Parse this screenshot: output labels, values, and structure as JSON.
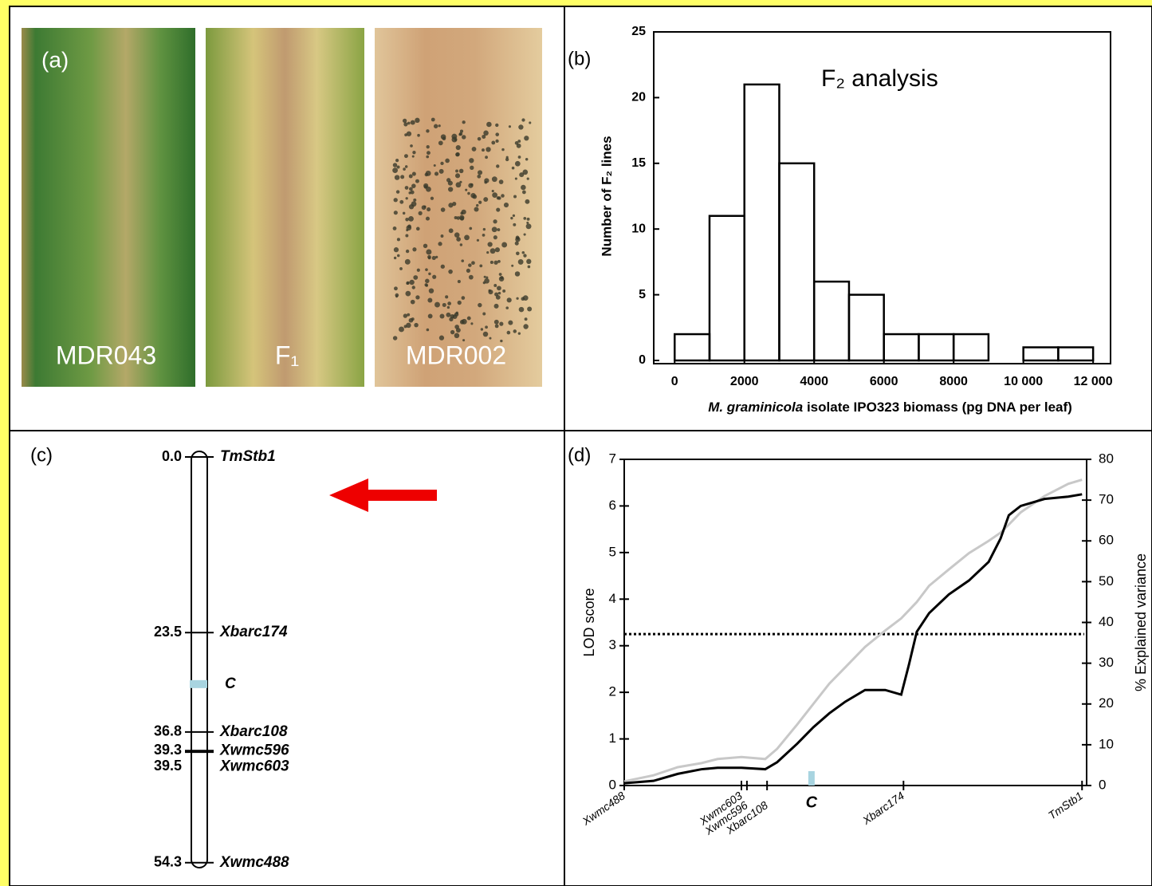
{
  "panels": {
    "a": {
      "label": "(a)",
      "leaves": [
        "MDR043",
        "F₁",
        "MDR002"
      ]
    },
    "c": {
      "label": "(c)",
      "markers": [
        {
          "position": "0.0",
          "name": "TmStb1"
        },
        {
          "position": "23.5",
          "name": "Xbarc174"
        },
        {
          "position": "36.8",
          "name": "Xbarc108"
        },
        {
          "position": "39.3",
          "name": "Xwmc596"
        },
        {
          "position": "39.5",
          "name": "Xwmc603"
        },
        {
          "position": "54.3",
          "name": "Xwmc488"
        }
      ],
      "qtl": {
        "name": "C",
        "position": 30.4
      }
    }
  },
  "chart_data": [
    {
      "type": "histogram",
      "panel_label": "(b)",
      "annotation": "F₂ analysis",
      "ylabel": "Number of F₂ lines",
      "xlabel_italic": "M. graminicola",
      "xlabel": "isolate IPO323 biomass (pg DNA per leaf)",
      "bins": [
        0,
        1000,
        2000,
        3000,
        4000,
        5000,
        6000,
        7000,
        8000,
        9000,
        10000,
        11000,
        12000
      ],
      "values": [
        2,
        11,
        21,
        15,
        6,
        5,
        2,
        2,
        2,
        0,
        1,
        1
      ],
      "color": "#000000",
      "xlim": [
        -600,
        12500
      ],
      "ylim": [
        0,
        25
      ],
      "xticks": [
        0,
        2000,
        4000,
        6000,
        8000,
        {
          "value": 10000,
          "label": "10 000"
        },
        {
          "value": 12000,
          "label": "12 000"
        }
      ],
      "yticks": [
        0,
        5,
        10,
        15,
        20,
        25
      ]
    },
    {
      "type": "line",
      "panel_label": "(d)",
      "ylabel": "LOD score",
      "y2label": "% Explained variance",
      "x": [
        0,
        6.4,
        11.7,
        16.9,
        20.4,
        25.6,
        30.8,
        33.4,
        37.8,
        41.3,
        44.8,
        48.3,
        52.6,
        57.0,
        60.5,
        62.2,
        63.9,
        66.6,
        70.9,
        75.3,
        79.6,
        82.2,
        84.0,
        86.6,
        91.8,
        97.0,
        100
      ],
      "series": [
        {
          "color": "#000000",
          "values": [
            0.05,
            0.1,
            0.25,
            0.35,
            0.38,
            0.38,
            0.35,
            0.5,
            0.9,
            1.25,
            1.55,
            1.8,
            2.05,
            2.05,
            1.95,
            2.6,
            3.3,
            3.7,
            4.1,
            4.4,
            4.8,
            5.3,
            5.8,
            6.0,
            6.15,
            6.2,
            6.25
          ]
        },
        {
          "color": "#c8c8c8",
          "axis": "y2",
          "values": [
            1,
            2.5,
            4.5,
            5.5,
            6.5,
            7,
            6.5,
            9,
            15,
            20,
            25,
            29,
            34,
            38,
            41,
            43,
            45,
            49,
            53,
            57,
            60,
            62,
            64,
            67,
            71,
            74,
            75
          ]
        }
      ],
      "threshold": 3.25,
      "xlim": [
        0,
        101
      ],
      "ylim": [
        0,
        7
      ],
      "y2lim": [
        0,
        80
      ],
      "yticks": [
        0,
        1,
        2,
        3,
        4,
        5,
        6,
        7
      ],
      "y2ticks": [
        0,
        10,
        20,
        30,
        40,
        50,
        60,
        70,
        80
      ],
      "xticks": [
        {
          "value": 0,
          "label": "Xwmc488"
        },
        {
          "value": 25.6,
          "label": "Xwmc603"
        },
        {
          "value": 26.8,
          "label": "Xwmc596"
        },
        {
          "value": 31.2,
          "label": "Xbarc108"
        },
        {
          "value": 61.0,
          "label": "Xbarc174"
        },
        {
          "value": 100,
          "label": "TmStb1"
        }
      ],
      "qtl": {
        "label": "C",
        "x": 40.9
      }
    }
  ]
}
